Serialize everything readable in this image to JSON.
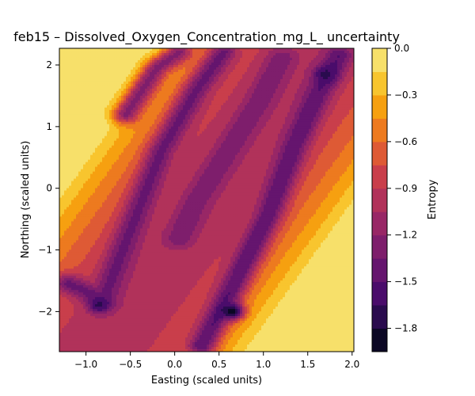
{
  "chart_data": {
    "type": "heatmap",
    "subtype": "filled-contour",
    "title": "feb15 – Dissolved_Oxygen_Concentration_mg_L_ uncertainty",
    "xlabel": "Easting (scaled units)",
    "ylabel": "Northing (scaled units)",
    "xlim": [
      -1.3,
      2.02
    ],
    "ylim": [
      -2.65,
      2.27
    ],
    "xticks": [
      -1.0,
      -0.5,
      0.0,
      0.5,
      1.0,
      1.5,
      2.0
    ],
    "xticklabels": [
      "−1.0",
      "−0.5",
      "0.0",
      "0.5",
      "1.0",
      "1.5",
      "2.0"
    ],
    "yticks": [
      -2,
      -1,
      0,
      1,
      2
    ],
    "yticklabels": [
      "−2",
      "−1",
      "0",
      "1",
      "2"
    ],
    "grid": false,
    "colormap": "inferno",
    "colorbar": {
      "label": "Entropy",
      "range": [
        -1.95,
        0.0
      ],
      "levels": [
        -1.95,
        -1.8,
        -1.65,
        -1.5,
        -1.35,
        -1.2,
        -1.05,
        -0.9,
        -0.75,
        -0.6,
        -0.45,
        -0.3,
        -0.15,
        0.0
      ],
      "level_colors": [
        "#0b0724",
        "#2a0b4e",
        "#4a0c6b",
        "#65156e",
        "#7e1e6c",
        "#982766",
        "#b1325a",
        "#c93e4b",
        "#de5a35",
        "#ed7a1f",
        "#f6a010",
        "#f8c52e",
        "#f7e06a",
        "#f0f28a"
      ],
      "ticks": [
        0.0,
        -0.3,
        -0.6,
        -0.9,
        -1.2,
        -1.5,
        -1.8
      ],
      "ticklabels": [
        "0.0",
        "−0.3",
        "−0.6",
        "−0.9",
        "−1.2",
        "−1.5",
        "−1.8"
      ]
    },
    "features": [
      {
        "kind": "low-entropy-ridge",
        "path": [
          [
            -1.2,
            -1.55
          ],
          [
            -0.8,
            -1.8
          ],
          [
            -0.45,
            -0.5
          ],
          [
            -0.15,
            0.6
          ],
          [
            0.25,
            1.6
          ],
          [
            0.55,
            2.2
          ]
        ],
        "level": -1.4
      },
      {
        "kind": "low-entropy-ridge",
        "path": [
          [
            0.3,
            -2.55
          ],
          [
            0.65,
            -1.6
          ],
          [
            1.05,
            -0.45
          ],
          [
            1.35,
            0.7
          ],
          [
            1.6,
            1.5
          ],
          [
            1.85,
            2.15
          ]
        ],
        "level": -1.5
      },
      {
        "kind": "low-entropy-ridge",
        "path": [
          [
            0.05,
            -0.8
          ],
          [
            0.25,
            -0.2
          ],
          [
            0.6,
            0.6
          ],
          [
            0.95,
            1.4
          ],
          [
            1.2,
            2.1
          ]
        ],
        "level": -1.35
      },
      {
        "kind": "low-entropy-ridge",
        "path": [
          [
            -0.55,
            1.2
          ],
          [
            -0.2,
            1.95
          ],
          [
            0.05,
            2.2
          ]
        ],
        "level": -1.25
      },
      {
        "kind": "minimum",
        "x": 0.65,
        "y": -2.0,
        "level": -1.9
      },
      {
        "kind": "minimum",
        "x": -0.85,
        "y": -1.9,
        "level": -1.7
      },
      {
        "kind": "minimum",
        "x": 1.7,
        "y": 1.85,
        "level": -1.7
      }
    ]
  }
}
